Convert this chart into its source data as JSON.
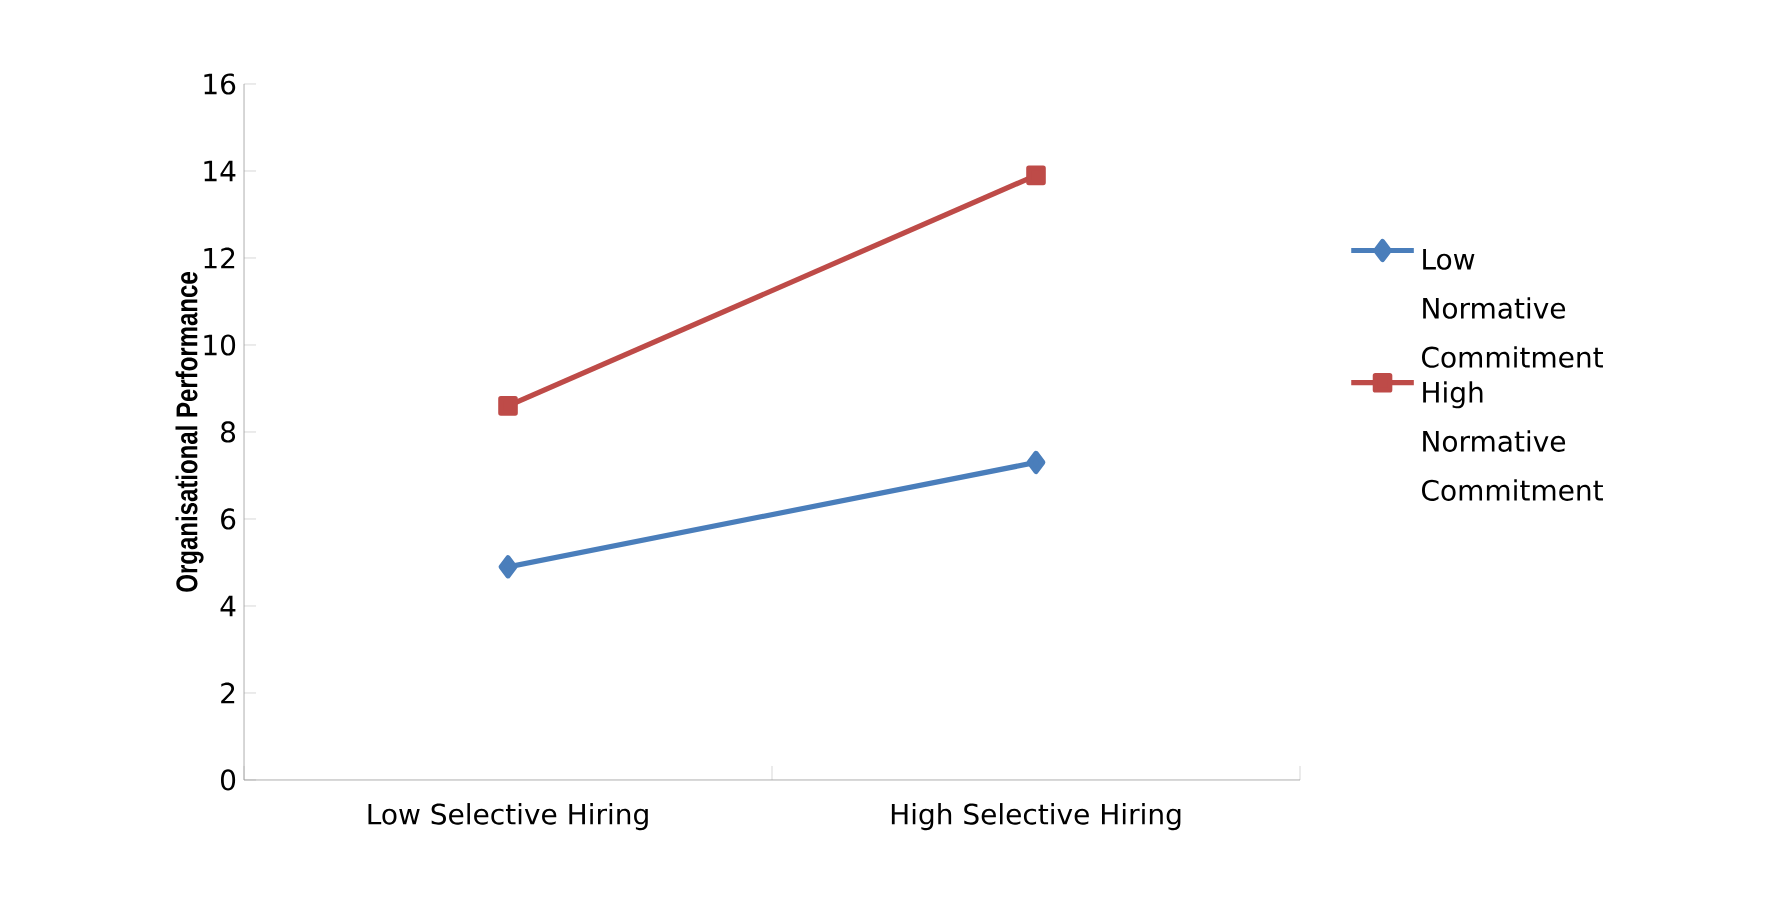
{
  "chart_data": {
    "type": "line",
    "ylabel": "Organisational Performance",
    "categories": [
      "Low Selective Hiring",
      "High Selective Hiring"
    ],
    "series": [
      {
        "name": "Low Normative Commitment",
        "color": "#4a7ebb",
        "marker": "diamond",
        "values": [
          4.9,
          7.3
        ]
      },
      {
        "name": "High Normative Commitment",
        "color": "#be4b48",
        "marker": "square",
        "values": [
          8.6,
          13.9
        ]
      }
    ],
    "ylim": [
      0,
      16
    ],
    "yticks": [
      0,
      2,
      4,
      6,
      8,
      10,
      12,
      14,
      16
    ],
    "grid": false,
    "legend": "right"
  }
}
